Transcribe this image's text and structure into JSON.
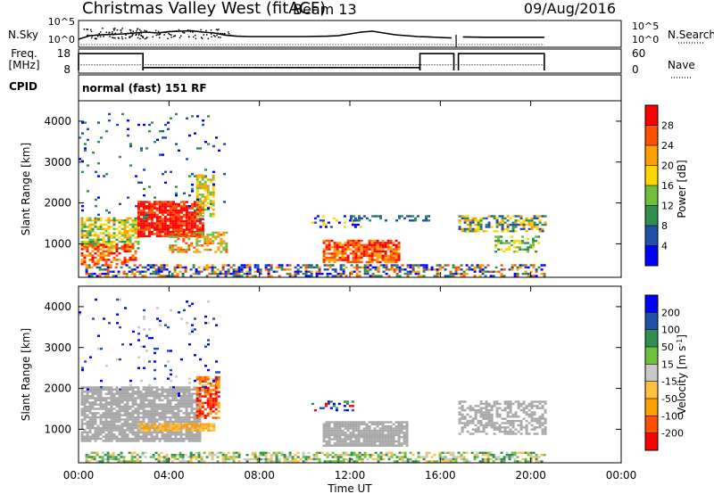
{
  "header": {
    "station": "Christmas Valley West (fitACF)",
    "beam": "Beam 13",
    "date": "09/Aug/2016"
  },
  "left_labels": {
    "nsky": "N.Sky",
    "freq_line1": "Freq.",
    "freq_line2": "[MHz]",
    "cpid": "CPID"
  },
  "right_labels": {
    "nsearch": "N.Search",
    "nave": "Nave"
  },
  "cpid_text": "normal (fast) 151 RF",
  "colors": {
    "power": [
      "#0000ff",
      "#1f4fa8",
      "#2f8f4f",
      "#6fbf3f",
      "#ffd700",
      "#ff9f00",
      "#ff4f00",
      "#ff0000"
    ],
    "velocity": [
      "#ff0000",
      "#ff4f00",
      "#ff9f00",
      "#ffbf3f",
      "#c8c8c8",
      "#6fbf3f",
      "#2f8f4f",
      "#1f4fa8",
      "#0000ff"
    ],
    "ground": "#a8a8a8"
  },
  "chart_data": [
    {
      "type": "line",
      "id": "noise",
      "ylabels_left": [
        "10^5",
        "10^0"
      ],
      "ylabels_right": [
        "10^5",
        "10^0"
      ],
      "x_hours": [
        0.0,
        0.5,
        1.0,
        1.5,
        2.0,
        2.5,
        3.0,
        3.5,
        4.0,
        4.5,
        5.0,
        5.5,
        6.0,
        6.5,
        7.0,
        7.5,
        8.0,
        9.0,
        10.0,
        11.0,
        11.5,
        12.0,
        12.5,
        13.0,
        13.5,
        14.0,
        14.5,
        15.0,
        15.5,
        16.0,
        16.5,
        16.7,
        17.0,
        18.0,
        19.0,
        20.0,
        20.6
      ],
      "nsky_level": [
        0.15,
        0.35,
        0.4,
        0.42,
        0.45,
        0.5,
        0.55,
        0.5,
        0.58,
        0.6,
        0.62,
        0.55,
        0.5,
        0.38,
        0.32,
        0.3,
        0.3,
        0.3,
        0.3,
        0.32,
        0.35,
        0.45,
        0.55,
        0.6,
        0.5,
        0.4,
        0.35,
        0.3,
        0.28,
        0.25,
        0.22,
        null,
        0.28,
        0.26,
        0.26,
        0.26,
        0.26
      ]
    },
    {
      "type": "line",
      "id": "frequency",
      "ylabels_left": [
        "18",
        "8"
      ],
      "ylabels_right": [
        "60",
        "0"
      ],
      "freq_steps": [
        {
          "from": 0.0,
          "to": 2.85,
          "level": 0.9
        },
        {
          "from": 2.85,
          "to": 15.1,
          "level": 0.15
        },
        {
          "from": 15.1,
          "to": 16.6,
          "level": 0.9
        },
        {
          "from": 16.8,
          "to": 20.6,
          "level": 0.9
        }
      ],
      "nave_level": 0.3
    },
    {
      "type": "heatmap",
      "id": "power",
      "ylabel": "Slant Range [km]",
      "cblabel": "Power [dB]",
      "yticks": [
        "1000",
        "2000",
        "3000",
        "4000"
      ],
      "ytick_values": [
        1000,
        2000,
        3000,
        4000
      ],
      "ylim": [
        180,
        4500
      ],
      "cb_ticks": [
        "4",
        "8",
        "12",
        "16",
        "20",
        "24",
        "28"
      ],
      "regions": [
        {
          "x0": 0.1,
          "x1": 2.6,
          "y0": 900,
          "y1": 1650,
          "c": [
            2,
            3,
            4,
            5
          ],
          "d": 0.65
        },
        {
          "x0": 0.1,
          "x1": 2.5,
          "y0": 500,
          "y1": 1000,
          "c": [
            6,
            7,
            5
          ],
          "d": 0.6
        },
        {
          "x0": 2.6,
          "x1": 5.5,
          "y0": 1200,
          "y1": 2050,
          "c": [
            6,
            7,
            7
          ],
          "d": 0.9
        },
        {
          "x0": 5.2,
          "x1": 6.0,
          "y0": 1700,
          "y1": 2700,
          "c": [
            3,
            4,
            5
          ],
          "d": 0.55
        },
        {
          "x0": 4.0,
          "x1": 6.5,
          "y0": 800,
          "y1": 1300,
          "c": [
            5,
            6,
            3
          ],
          "d": 0.55
        },
        {
          "x0": 0.3,
          "x1": 20.6,
          "y0": 220,
          "y1": 500,
          "c": [
            0,
            1,
            2,
            5,
            6
          ],
          "d": 0.5
        },
        {
          "x0": 10.8,
          "x1": 14.2,
          "y0": 550,
          "y1": 1100,
          "c": [
            6,
            7,
            5
          ],
          "d": 0.8
        },
        {
          "x0": 10.3,
          "x1": 12.5,
          "y0": 1400,
          "y1": 1700,
          "c": [
            0,
            1,
            4
          ],
          "d": 0.25
        },
        {
          "x0": 12.0,
          "x1": 15.5,
          "y0": 1550,
          "y1": 1700,
          "c": [
            1,
            2
          ],
          "d": 0.35
        },
        {
          "x0": 16.8,
          "x1": 20.6,
          "y0": 1300,
          "y1": 1700,
          "c": [
            1,
            2,
            4,
            5
          ],
          "d": 0.55
        },
        {
          "x0": 18.4,
          "x1": 20.4,
          "y0": 800,
          "y1": 1200,
          "c": [
            2,
            3,
            4
          ],
          "d": 0.5
        },
        {
          "x0": 0.0,
          "x1": 6.5,
          "y0": 1600,
          "y1": 4200,
          "c": [
            0,
            1,
            2
          ],
          "d": 0.04
        }
      ]
    },
    {
      "type": "heatmap",
      "id": "velocity",
      "ylabel": "Slant Range [km]",
      "cblabel": "Velocity [m s^-1]",
      "yticks": [
        "1000",
        "2000",
        "3000",
        "4000"
      ],
      "ytick_values": [
        1000,
        2000,
        3000,
        4000
      ],
      "ylim": [
        180,
        4500
      ],
      "xlabel": "Time UT",
      "xticks": [
        "00:00",
        "04:00",
        "08:00",
        "12:00",
        "16:00",
        "20:00",
        "00:00"
      ],
      "xtick_hours": [
        0,
        4,
        8,
        12,
        16,
        20,
        24
      ],
      "xlim": [
        0,
        24
      ],
      "cb_ticks": [
        "-200",
        "-100",
        "-50",
        "-15",
        "15",
        "50",
        "100",
        "200"
      ],
      "regions": [
        {
          "x0": 0.1,
          "x1": 5.4,
          "y0": 700,
          "y1": 2050,
          "c": [
            4
          ],
          "d": 0.85,
          "g": true
        },
        {
          "x0": 5.2,
          "x1": 6.2,
          "y0": 1300,
          "y1": 2300,
          "c": [
            0,
            1,
            2
          ],
          "d": 0.6
        },
        {
          "x0": 2.5,
          "x1": 6.0,
          "y0": 950,
          "y1": 1150,
          "c": [
            2,
            3
          ],
          "d": 0.75
        },
        {
          "x0": 0.3,
          "x1": 20.6,
          "y0": 220,
          "y1": 450,
          "c": [
            4,
            5,
            6,
            3
          ],
          "d": 0.55
        },
        {
          "x0": 10.8,
          "x1": 14.5,
          "y0": 600,
          "y1": 1200,
          "c": [
            4
          ],
          "d": 0.85,
          "g": true
        },
        {
          "x0": 10.3,
          "x1": 12.2,
          "y0": 1450,
          "y1": 1700,
          "c": [
            6,
            7,
            8,
            0
          ],
          "d": 0.25
        },
        {
          "x0": 16.8,
          "x1": 20.6,
          "y0": 900,
          "y1": 1700,
          "c": [
            4
          ],
          "d": 0.55,
          "g": true
        },
        {
          "x0": 0.0,
          "x1": 6.5,
          "y0": 1800,
          "y1": 4200,
          "c": [
            4,
            7,
            8
          ],
          "d": 0.04
        }
      ]
    }
  ]
}
